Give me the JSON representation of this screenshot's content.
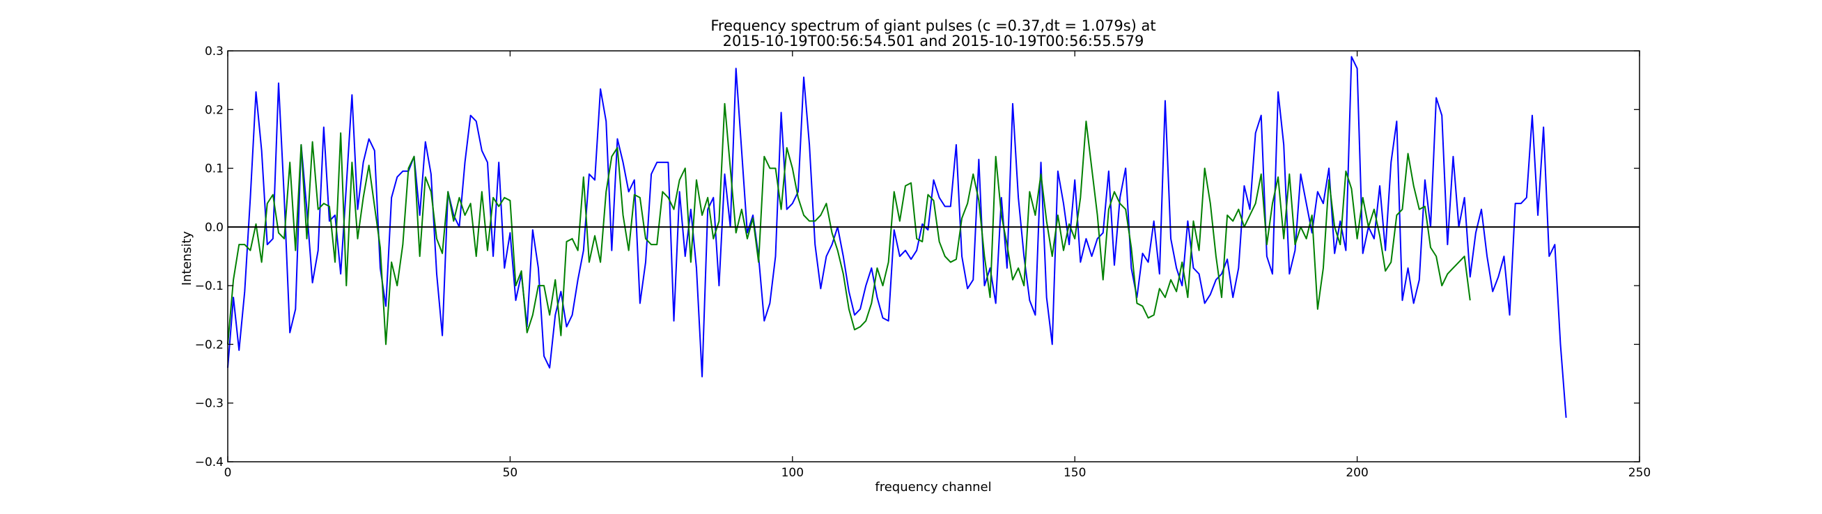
{
  "chart_data": {
    "type": "line",
    "title_lines": [
      "Frequency spectrum of giant pulses (c =0.37,dt = 1.079s) at",
      "2015-10-19T00:56:54.501 and 2015-10-19T00:56:55.579"
    ],
    "xlabel": "frequency channel",
    "ylabel": "Intensity",
    "xlim": [
      0,
      250
    ],
    "ylim": [
      -0.4,
      0.3
    ],
    "xticks": [
      0,
      50,
      100,
      150,
      200,
      250
    ],
    "yticks": [
      -0.4,
      -0.3,
      -0.2,
      -0.1,
      0.0,
      0.1,
      0.2,
      0.3
    ],
    "xtick_labels": [
      "0",
      "50",
      "100",
      "150",
      "200",
      "250"
    ],
    "ytick_labels": [
      "−0.4",
      "−0.3",
      "−0.2",
      "−0.1",
      "0.0",
      "0.1",
      "0.2",
      "0.3"
    ],
    "zero_line": true,
    "grid": false,
    "series": [
      {
        "color": "#0000ff",
        "values": [
          -0.24,
          -0.12,
          -0.21,
          -0.11,
          0.05,
          0.23,
          0.13,
          -0.03,
          -0.02,
          0.245,
          0.05,
          -0.18,
          -0.14,
          0.14,
          0.03,
          -0.095,
          -0.04,
          0.17,
          0.01,
          0.02,
          -0.08,
          0.07,
          0.225,
          0.03,
          0.11,
          0.15,
          0.13,
          -0.07,
          -0.135,
          0.05,
          0.085,
          0.095,
          0.095,
          0.12,
          0.02,
          0.145,
          0.09,
          -0.08,
          -0.185,
          0.06,
          0.02,
          0.0,
          0.11,
          0.19,
          0.18,
          0.13,
          0.11,
          -0.05,
          0.11,
          -0.07,
          -0.01,
          -0.125,
          -0.08,
          -0.17,
          -0.005,
          -0.07,
          -0.22,
          -0.24,
          -0.15,
          -0.11,
          -0.17,
          -0.15,
          -0.09,
          -0.04,
          0.09,
          0.08,
          0.235,
          0.18,
          -0.04,
          0.15,
          0.11,
          0.06,
          0.08,
          -0.13,
          -0.06,
          0.09,
          0.11,
          0.11,
          0.11,
          -0.16,
          0.06,
          -0.05,
          0.03,
          -0.07,
          -0.255,
          0.03,
          0.05,
          -0.1,
          0.09,
          0.0,
          0.27,
          0.13,
          -0.01,
          0.02,
          -0.05,
          -0.16,
          -0.13,
          -0.05,
          0.195,
          0.03,
          0.04,
          0.06,
          0.255,
          0.14,
          -0.03,
          -0.105,
          -0.05,
          -0.03,
          0.0,
          -0.05,
          -0.11,
          -0.15,
          -0.14,
          -0.1,
          -0.07,
          -0.12,
          -0.155,
          -0.16,
          -0.005,
          -0.05,
          -0.04,
          -0.055,
          -0.04,
          0.005,
          -0.005,
          0.08,
          0.05,
          0.035,
          0.035,
          0.14,
          -0.05,
          -0.105,
          -0.09,
          0.115,
          -0.1,
          -0.07,
          -0.13,
          0.05,
          -0.07,
          0.21,
          0.05,
          -0.05,
          -0.125,
          -0.15,
          0.11,
          -0.12,
          -0.2,
          0.095,
          0.04,
          -0.03,
          0.08,
          -0.06,
          -0.02,
          -0.05,
          -0.02,
          -0.01,
          0.095,
          -0.065,
          0.05,
          0.1,
          -0.07,
          -0.12,
          -0.045,
          -0.06,
          0.01,
          -0.08,
          0.215,
          -0.02,
          -0.07,
          -0.1,
          0.01,
          -0.07,
          -0.08,
          -0.13,
          -0.115,
          -0.09,
          -0.08,
          -0.055,
          -0.12,
          -0.07,
          0.07,
          0.03,
          0.16,
          0.19,
          -0.05,
          -0.08,
          0.23,
          0.14,
          -0.08,
          -0.04,
          0.09,
          0.04,
          -0.01,
          0.06,
          0.04,
          0.1,
          -0.045,
          0.01,
          -0.04,
          0.29,
          0.27,
          -0.045,
          0.0,
          -0.02,
          0.07,
          -0.04,
          0.11,
          0.18,
          -0.125,
          -0.07,
          -0.13,
          -0.09,
          0.08,
          0.0,
          0.22,
          0.19,
          -0.03,
          0.12,
          0.0,
          0.05,
          -0.085,
          -0.01,
          0.03,
          -0.05,
          -0.11,
          -0.085,
          -0.05,
          -0.15,
          0.04,
          0.04,
          0.05,
          0.19,
          0.02,
          0.17,
          -0.05,
          -0.03,
          -0.2,
          -0.325
        ]
      },
      {
        "color": "#008000",
        "values": [
          -0.2,
          -0.09,
          -0.03,
          -0.03,
          -0.04,
          0.005,
          -0.06,
          0.04,
          0.055,
          -0.01,
          -0.02,
          0.11,
          -0.04,
          0.14,
          -0.02,
          0.145,
          0.03,
          0.04,
          0.035,
          -0.06,
          0.16,
          -0.1,
          0.11,
          -0.02,
          0.05,
          0.105,
          0.035,
          -0.035,
          -0.2,
          -0.06,
          -0.1,
          -0.03,
          0.1,
          0.12,
          -0.05,
          0.085,
          0.06,
          -0.02,
          -0.045,
          0.06,
          0.01,
          0.05,
          0.02,
          0.04,
          -0.05,
          0.06,
          -0.04,
          0.05,
          0.035,
          0.05,
          0.045,
          -0.1,
          -0.075,
          -0.18,
          -0.15,
          -0.1,
          -0.1,
          -0.15,
          -0.09,
          -0.185,
          -0.025,
          -0.02,
          -0.04,
          0.085,
          -0.06,
          -0.015,
          -0.06,
          0.06,
          0.12,
          0.135,
          0.02,
          -0.04,
          0.055,
          0.05,
          -0.02,
          -0.03,
          -0.03,
          0.06,
          0.05,
          0.03,
          0.08,
          0.1,
          -0.06,
          0.08,
          0.02,
          0.05,
          -0.02,
          0.01,
          0.21,
          0.1,
          -0.01,
          0.03,
          -0.02,
          0.015,
          -0.06,
          0.12,
          0.1,
          0.1,
          0.03,
          0.135,
          0.1,
          0.05,
          0.02,
          0.01,
          0.01,
          0.02,
          0.04,
          -0.01,
          -0.04,
          -0.08,
          -0.14,
          -0.175,
          -0.17,
          -0.16,
          -0.13,
          -0.07,
          -0.1,
          -0.06,
          0.06,
          0.01,
          0.07,
          0.075,
          -0.02,
          -0.025,
          0.055,
          0.045,
          -0.025,
          -0.05,
          -0.06,
          -0.055,
          0.015,
          0.04,
          0.09,
          0.045,
          -0.05,
          -0.12,
          0.12,
          0.02,
          -0.03,
          -0.09,
          -0.07,
          -0.1,
          0.06,
          0.02,
          0.09,
          0.01,
          -0.05,
          0.02,
          -0.04,
          0.005,
          -0.02,
          0.05,
          0.18,
          0.1,
          0.02,
          -0.09,
          0.03,
          0.06,
          0.04,
          0.03,
          -0.035,
          -0.13,
          -0.135,
          -0.155,
          -0.15,
          -0.105,
          -0.12,
          -0.09,
          -0.11,
          -0.06,
          -0.12,
          0.01,
          -0.04,
          0.1,
          0.04,
          -0.05,
          -0.12,
          0.02,
          0.01,
          0.03,
          0.0,
          0.02,
          0.04,
          0.09,
          -0.03,
          0.04,
          0.085,
          -0.02,
          0.09,
          -0.03,
          0.0,
          -0.02,
          0.02,
          -0.14,
          -0.07,
          0.08,
          0.0,
          -0.03,
          0.095,
          0.065,
          -0.02,
          0.05,
          0.0,
          0.03,
          -0.015,
          -0.075,
          -0.06,
          0.02,
          0.03,
          0.125,
          0.07,
          0.03,
          0.035,
          -0.035,
          -0.05,
          -0.1,
          -0.08,
          -0.07,
          -0.06,
          -0.05,
          -0.125
        ]
      }
    ]
  }
}
